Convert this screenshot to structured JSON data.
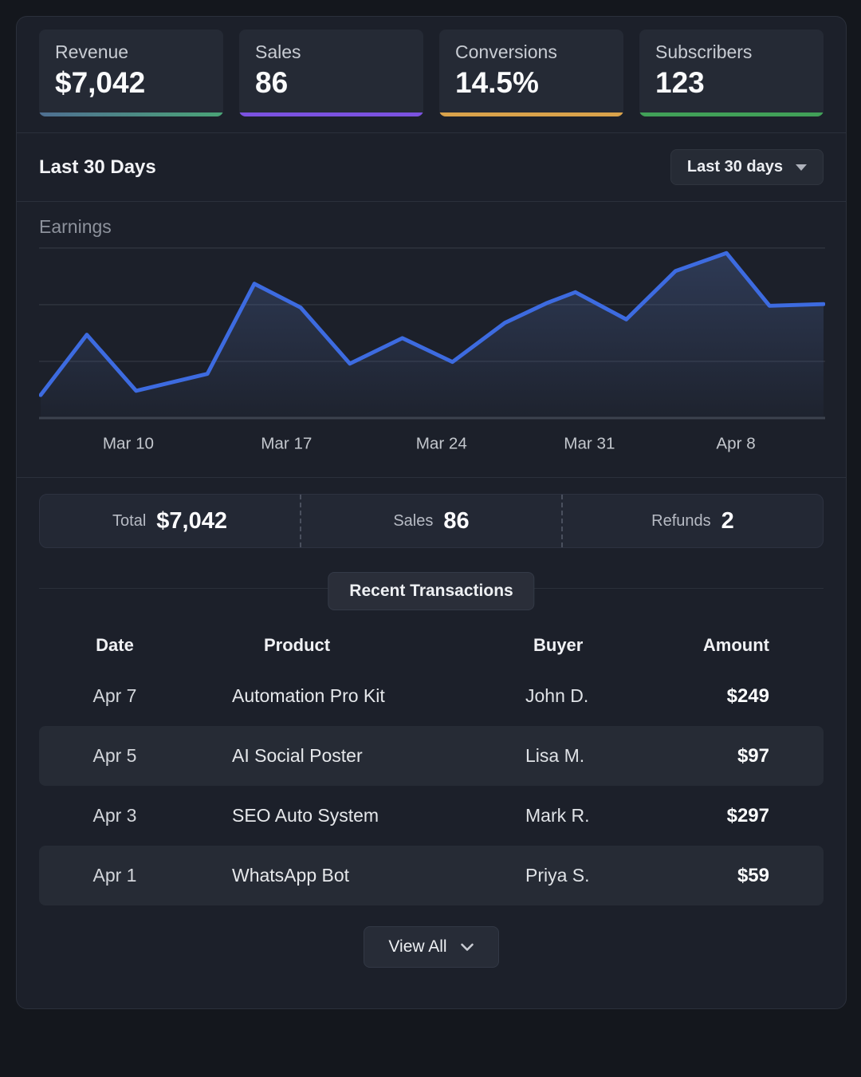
{
  "stats": {
    "cards": [
      {
        "label": "Revenue",
        "value": "$7,042",
        "accent_from": "#4f6f92",
        "accent_to": "#4aa477"
      },
      {
        "label": "Sales",
        "value": "86",
        "accent_from": "#7b52e0",
        "accent_to": "#7b52e0"
      },
      {
        "label": "Conversions",
        "value": "14.5%",
        "accent_from": "#d9a24b",
        "accent_to": "#d9a24b"
      },
      {
        "label": "Subscribers",
        "value": "123",
        "accent_from": "#41a058",
        "accent_to": "#41a058"
      }
    ]
  },
  "period_header": {
    "title": "Last 30 Days",
    "dropdown_label": "Last 30 days"
  },
  "chart_data": {
    "type": "area",
    "title": "Earnings",
    "xlabel": "",
    "ylabel": "",
    "x_tick_labels": [
      "Mar 10",
      "Mar 17",
      "Mar 24",
      "Mar 31",
      "Apr 8"
    ],
    "x_tick_pos": [
      11.2,
      31.4,
      51.2,
      70.1,
      88.8
    ],
    "points": [
      [
        0,
        13.5
      ],
      [
        5.9,
        49
      ],
      [
        12.2,
        16
      ],
      [
        21.3,
        26
      ],
      [
        27.3,
        79
      ],
      [
        33.2,
        65
      ],
      [
        39.5,
        32
      ],
      [
        46.2,
        47
      ],
      [
        52.6,
        33
      ],
      [
        59.3,
        56
      ],
      [
        64.6,
        67.5
      ],
      [
        68.3,
        74
      ],
      [
        74.8,
        58
      ],
      [
        81.1,
        86.5
      ],
      [
        87.6,
        97
      ],
      [
        93.1,
        66
      ],
      [
        100,
        67
      ]
    ],
    "y_range": [
      0,
      107
    ],
    "gridlines_at": [
      33.3,
      66.7,
      100
    ],
    "grid": true,
    "legend": false,
    "line_color": "#3d6be0",
    "area_color": "#5d7dc4",
    "area_opacity_top": 0.28,
    "area_opacity_bottom": 0.03,
    "grid_color": "#2e333e",
    "axis_color": "#3c424e",
    "tick_color": "#c3c7cd"
  },
  "summary": {
    "items": [
      {
        "label": "Total",
        "value": "$7,042"
      },
      {
        "label": "Sales",
        "value": "86"
      },
      {
        "label": "Refunds",
        "value": "2"
      }
    ]
  },
  "transactions": {
    "section_title": "Recent Transactions",
    "headers": [
      "Date",
      "Product",
      "Buyer",
      "Amount"
    ],
    "rows": [
      {
        "date": "Apr 7",
        "product": "Automation Pro Kit",
        "buyer": "John D.",
        "amount": "$249"
      },
      {
        "date": "Apr 5",
        "product": "AI Social Poster",
        "buyer": "Lisa M.",
        "amount": "$97"
      },
      {
        "date": "Apr 3",
        "product": "SEO Auto System",
        "buyer": "Mark R.",
        "amount": "$297"
      },
      {
        "date": "Apr 1",
        "product": "WhatsApp Bot",
        "buyer": "Priya S.",
        "amount": "$59"
      }
    ],
    "view_all_label": "View All"
  }
}
